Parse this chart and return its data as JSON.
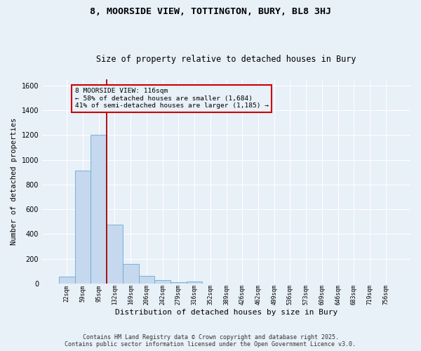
{
  "title1": "8, MOORSIDE VIEW, TOTTINGTON, BURY, BL8 3HJ",
  "title2": "Size of property relative to detached houses in Bury",
  "xlabel": "Distribution of detached houses by size in Bury",
  "ylabel": "Number of detached properties",
  "categories": [
    "22sqm",
    "59sqm",
    "95sqm",
    "132sqm",
    "169sqm",
    "206sqm",
    "242sqm",
    "279sqm",
    "316sqm",
    "352sqm",
    "389sqm",
    "426sqm",
    "462sqm",
    "499sqm",
    "536sqm",
    "573sqm",
    "609sqm",
    "646sqm",
    "683sqm",
    "719sqm",
    "756sqm"
  ],
  "bar_heights": [
    55,
    910,
    1200,
    475,
    155,
    60,
    30,
    10,
    15,
    0,
    0,
    0,
    0,
    0,
    0,
    0,
    0,
    0,
    0,
    0,
    0
  ],
  "bar_color": "#c5d8ee",
  "bar_edgecolor": "#6aaad4",
  "background_color": "#e8f0f8",
  "grid_color": "#ffffff",
  "vline_color": "#aa0000",
  "vline_linewidth": 1.3,
  "annotation_text": "8 MOORSIDE VIEW: 116sqm\n← 58% of detached houses are smaller (1,684)\n41% of semi-detached houses are larger (1,185) →",
  "annotation_box_color": "#cc0000",
  "ylim": [
    0,
    1650
  ],
  "yticks": [
    0,
    200,
    400,
    600,
    800,
    1000,
    1200,
    1400,
    1600
  ],
  "title1_fontsize": 9.5,
  "title2_fontsize": 8.5,
  "xlabel_fontsize": 8,
  "ylabel_fontsize": 7.5,
  "tick_fontsize": 7,
  "xtick_fontsize": 5.8,
  "annotation_fontsize": 6.8,
  "footer1": "Contains HM Land Registry data © Crown copyright and database right 2025.",
  "footer2": "Contains public sector information licensed under the Open Government Licence v3.0.",
  "footer_fontsize": 6
}
